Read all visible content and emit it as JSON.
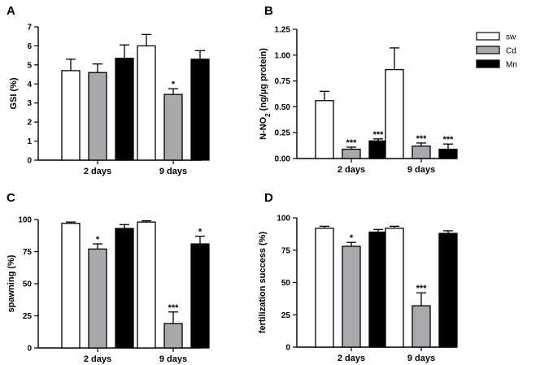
{
  "chart_data": [
    {
      "panel": "A",
      "type": "bar",
      "ylabel": "GSI (%)",
      "ylim": [
        0,
        7
      ],
      "yticks": [
        "0",
        "1",
        "2",
        "3",
        "4",
        "5",
        "6",
        "7"
      ],
      "yticks_values": [
        0,
        1,
        2,
        3,
        4,
        5,
        6,
        7
      ],
      "categories": [
        "2 days",
        "9 days"
      ],
      "series": [
        {
          "name": "sw",
          "values": [
            4.7,
            6.0
          ],
          "errors": [
            0.6,
            0.6
          ],
          "sig": [
            "",
            ""
          ]
        },
        {
          "name": "Cd",
          "values": [
            4.6,
            3.45
          ],
          "errors": [
            0.45,
            0.3
          ],
          "sig": [
            "",
            "*"
          ]
        },
        {
          "name": "Mn",
          "values": [
            5.35,
            5.3
          ],
          "errors": [
            0.7,
            0.45
          ],
          "sig": [
            "",
            ""
          ]
        }
      ]
    },
    {
      "panel": "B",
      "type": "bar",
      "ylabel": "N-NO",
      "ylabel_sub": "2",
      "ylabel_rest": " (ng/µg protein)",
      "ylim": [
        0,
        1.25
      ],
      "yticks": [
        "0.00",
        "0.25",
        "0.50",
        "0.75",
        "1.00",
        "1.25"
      ],
      "yticks_values": [
        0,
        0.25,
        0.5,
        0.75,
        1.0,
        1.25
      ],
      "categories": [
        "2 days",
        "9 days"
      ],
      "series": [
        {
          "name": "sw",
          "values": [
            0.56,
            0.86
          ],
          "errors": [
            0.09,
            0.21
          ],
          "sig": [
            "",
            ""
          ]
        },
        {
          "name": "Cd",
          "values": [
            0.09,
            0.12
          ],
          "errors": [
            0.02,
            0.03
          ],
          "sig": [
            "***",
            "***"
          ]
        },
        {
          "name": "Mn",
          "values": [
            0.17,
            0.09
          ],
          "errors": [
            0.02,
            0.05
          ],
          "sig": [
            "***",
            "***"
          ]
        }
      ]
    },
    {
      "panel": "C",
      "type": "bar",
      "ylabel": "spawning (%)",
      "ylim": [
        0,
        100
      ],
      "yticks": [
        "0",
        "25",
        "50",
        "75",
        "100"
      ],
      "yticks_values": [
        0,
        25,
        50,
        75,
        100
      ],
      "categories": [
        "2 days",
        "9 days"
      ],
      "series": [
        {
          "name": "sw",
          "values": [
            97,
            98
          ],
          "errors": [
            1,
            1
          ],
          "sig": [
            "",
            ""
          ]
        },
        {
          "name": "Cd",
          "values": [
            77,
            19
          ],
          "errors": [
            4,
            9
          ],
          "sig": [
            "*",
            "***"
          ]
        },
        {
          "name": "Mn",
          "values": [
            93,
            81
          ],
          "errors": [
            3,
            6
          ],
          "sig": [
            "",
            "*"
          ]
        }
      ]
    },
    {
      "panel": "D",
      "type": "bar",
      "ylabel": "fertilization success (%)",
      "ylim": [
        0,
        100
      ],
      "yticks": [
        "0",
        "25",
        "50",
        "75",
        "100"
      ],
      "yticks_values": [
        0,
        25,
        50,
        75,
        100
      ],
      "categories": [
        "2 days",
        "9 days"
      ],
      "series": [
        {
          "name": "sw",
          "values": [
            92,
            92
          ],
          "errors": [
            1.5,
            1.5
          ],
          "sig": [
            "",
            ""
          ]
        },
        {
          "name": "Cd",
          "values": [
            78,
            32
          ],
          "errors": [
            3,
            10
          ],
          "sig": [
            "*",
            "***"
          ]
        },
        {
          "name": "Mn",
          "values": [
            89,
            88
          ],
          "errors": [
            2,
            2
          ],
          "sig": [
            "",
            ""
          ]
        }
      ]
    }
  ],
  "legend": {
    "placement": "top-right",
    "items": [
      {
        "label": "sw",
        "color": "#ffffff"
      },
      {
        "label": "Cd",
        "color": "#a8a8ad"
      },
      {
        "label": "Mn",
        "color": "#000000"
      }
    ]
  },
  "series_colors": [
    "#ffffff",
    "#a8a8ad",
    "#000000"
  ]
}
